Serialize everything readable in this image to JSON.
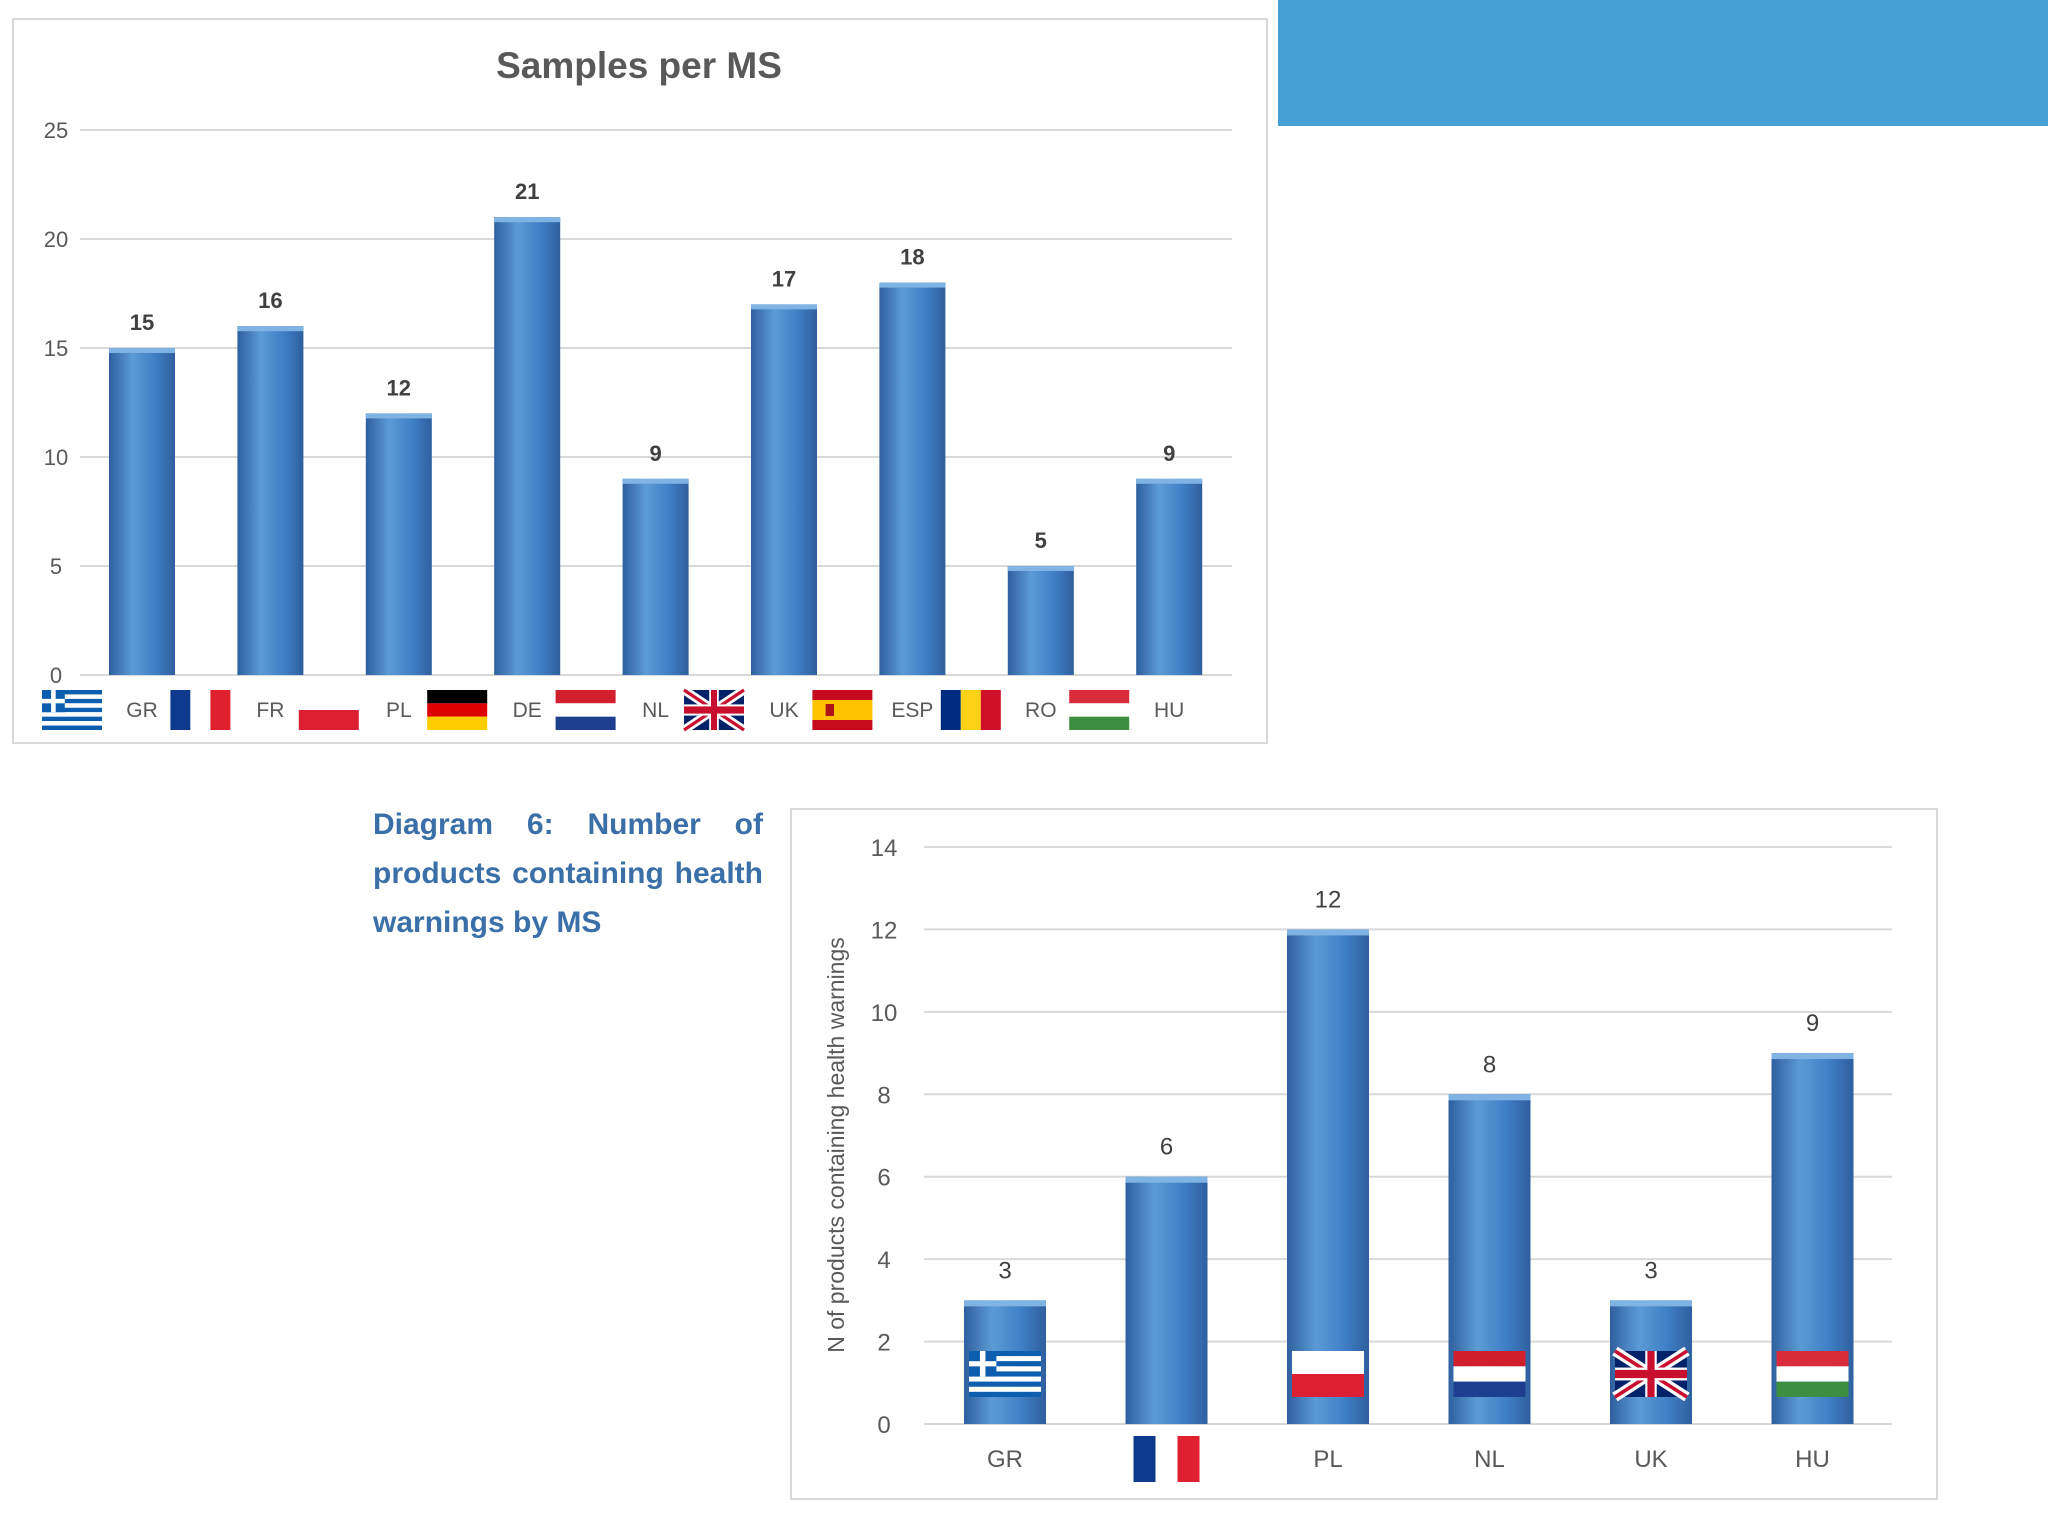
{
  "colors": {
    "bar_top": "#5b9bd5",
    "bar_mid": "#3f7fc6",
    "bar_dark": "#2f5f9e",
    "grid": "#d9d9d9",
    "corner_bar": "#44a0d6",
    "caption": "#3a6fa8",
    "axis_text": "#595959"
  },
  "corner_bar": {
    "icon": "solid-blue-rectangle"
  },
  "caption": {
    "text": "Diagram 6: Number of products containing health warnings by MS"
  },
  "chart_data": [
    {
      "type": "bar",
      "title": "Samples per MS",
      "xlabel": "",
      "ylabel": "",
      "ylim": [
        0,
        25
      ],
      "yticks": [
        0,
        5,
        10,
        15,
        20,
        25
      ],
      "grid": true,
      "categories": [
        "GR",
        "FR",
        "PL",
        "DE",
        "NL",
        "UK",
        "ESP",
        "RO",
        "HU"
      ],
      "flags": [
        "greece",
        "france",
        "poland",
        "germany",
        "netherlands",
        "uk",
        "spain",
        "romania",
        "hungary"
      ],
      "values": [
        15,
        16,
        12,
        21,
        9,
        17,
        18,
        5,
        9
      ],
      "data_labels": true
    },
    {
      "type": "bar",
      "title": "",
      "xlabel": "",
      "ylabel": "N of products containing health warnings",
      "ylim": [
        0,
        14
      ],
      "yticks": [
        0,
        2,
        4,
        6,
        8,
        10,
        12,
        14
      ],
      "grid": true,
      "categories": [
        "GR",
        "",
        "PL",
        "NL",
        "UK",
        "HU"
      ],
      "category_flags": [
        "",
        "france",
        "",
        "",
        "",
        ""
      ],
      "bar_flags": [
        "greece",
        "",
        "poland",
        "netherlands",
        "uk",
        "hungary"
      ],
      "values": [
        3,
        6,
        12,
        8,
        3,
        9
      ],
      "data_labels": true
    }
  ]
}
